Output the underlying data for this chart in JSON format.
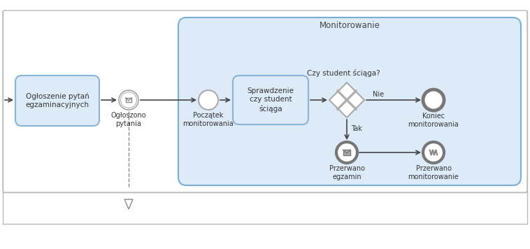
{
  "bg_color": "#ffffff",
  "pool_bg": "#ffffff",
  "pool_border": "#bbbbbb",
  "subprocess_bg": "#ddeaf7",
  "subprocess_border": "#7aaed4",
  "task_bg": "#ddeaf7",
  "task_border": "#8ab4d8",
  "arrow_color": "#444444",
  "text_color": "#333333",
  "event_border": "#999999",
  "end_event_border": "#666666",
  "title": "Monitorowanie",
  "task1_label": "Ogłoszenie pytań\negzaminacyjnych",
  "task2_label": "Sprawdzenie\nczy student\nściąga",
  "start_label": "Początek\nmonitorowania",
  "end_label": "Koniec\nmonitorowania",
  "msg_event1_label": "Ogłoszono\npytania",
  "gateway_label": "Czy student ściąga?",
  "nie_label": "Nie",
  "tak_label": "Tak",
  "przerwano_egz_label": "Przerwano\negzamin",
  "przerwano_mon_label": "Przerwano\nmonitorowanie"
}
